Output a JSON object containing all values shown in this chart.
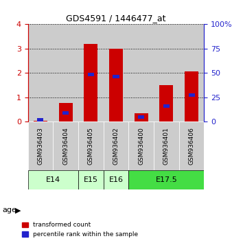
{
  "title": "GDS4591 / 1446477_at",
  "samples": [
    "GSM936403",
    "GSM936404",
    "GSM936405",
    "GSM936402",
    "GSM936400",
    "GSM936401",
    "GSM936406"
  ],
  "transformed_counts": [
    0.03,
    0.78,
    3.2,
    3.0,
    0.35,
    1.5,
    2.08
  ],
  "percentile_ranks": [
    0.08,
    0.35,
    1.95,
    1.85,
    0.18,
    0.65,
    1.1
  ],
  "age_groups": [
    {
      "label": "E14",
      "start": 0,
      "end": 2,
      "color": "#ccffcc"
    },
    {
      "label": "E15",
      "start": 2,
      "end": 3,
      "color": "#ccffcc"
    },
    {
      "label": "E16",
      "start": 3,
      "end": 4,
      "color": "#ccffcc"
    },
    {
      "label": "E17.5",
      "start": 4,
      "end": 7,
      "color": "#44dd44"
    }
  ],
  "bar_color_red": "#cc0000",
  "bar_color_blue": "#2222cc",
  "sample_bg_color": "#cccccc",
  "ylim_left": [
    0,
    4
  ],
  "ylim_right": [
    0,
    100
  ],
  "yticks_left": [
    0,
    1,
    2,
    3,
    4
  ],
  "yticks_right": [
    0,
    25,
    50,
    75,
    100
  ],
  "bar_width": 0.55,
  "blue_bar_width": 0.25,
  "blue_bar_height": 0.14
}
